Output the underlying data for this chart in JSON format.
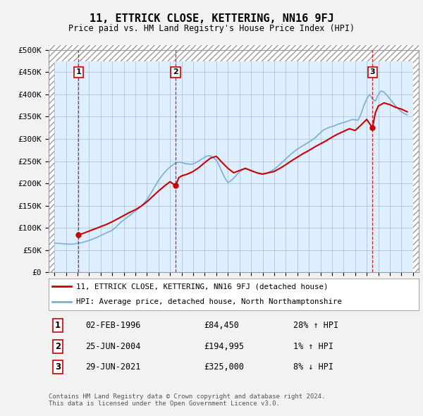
{
  "title": "11, ETTRICK CLOSE, KETTERING, NN16 9FJ",
  "subtitle": "Price paid vs. HM Land Registry's House Price Index (HPI)",
  "ylim": [
    0,
    500000
  ],
  "xlim_start": 1993.5,
  "xlim_end": 2025.5,
  "yticks": [
    0,
    50000,
    100000,
    150000,
    200000,
    250000,
    300000,
    350000,
    400000,
    450000,
    500000
  ],
  "ytick_labels": [
    "£0",
    "£50K",
    "£100K",
    "£150K",
    "£200K",
    "£250K",
    "£300K",
    "£350K",
    "£400K",
    "£450K",
    "£500K"
  ],
  "red_line_color": "#cc0000",
  "blue_line_color": "#7aafd4",
  "background_color": "#ddeeff",
  "grid_color": "#aabbcc",
  "sale_points": [
    {
      "year": 1996.08,
      "price": 84450,
      "label": "1"
    },
    {
      "year": 2004.48,
      "price": 194995,
      "label": "2"
    },
    {
      "year": 2021.49,
      "price": 325000,
      "label": "3"
    }
  ],
  "sale_table": [
    {
      "num": "1",
      "date": "02-FEB-1996",
      "price": "£84,450",
      "hpi": "28% ↑ HPI"
    },
    {
      "num": "2",
      "date": "25-JUN-2004",
      "price": "£194,995",
      "hpi": "1% ↑ HPI"
    },
    {
      "num": "3",
      "date": "29-JUN-2021",
      "price": "£325,000",
      "hpi": "8% ↓ HPI"
    }
  ],
  "legend_entries": [
    "11, ETTRICK CLOSE, KETTERING, NN16 9FJ (detached house)",
    "HPI: Average price, detached house, North Northamptonshire"
  ],
  "footer": "Contains HM Land Registry data © Crown copyright and database right 2024.\nThis data is licensed under the Open Government Licence v3.0.",
  "hpi_data_years": [
    1994.0,
    1994.25,
    1994.5,
    1994.75,
    1995.0,
    1995.25,
    1995.5,
    1995.75,
    1996.0,
    1996.25,
    1996.5,
    1996.75,
    1997.0,
    1997.25,
    1997.5,
    1997.75,
    1998.0,
    1998.25,
    1998.5,
    1998.75,
    1999.0,
    1999.25,
    1999.5,
    1999.75,
    2000.0,
    2000.25,
    2000.5,
    2000.75,
    2001.0,
    2001.25,
    2001.5,
    2001.75,
    2002.0,
    2002.25,
    2002.5,
    2002.75,
    2003.0,
    2003.25,
    2003.5,
    2003.75,
    2004.0,
    2004.25,
    2004.5,
    2004.75,
    2005.0,
    2005.25,
    2005.5,
    2005.75,
    2006.0,
    2006.25,
    2006.5,
    2006.75,
    2007.0,
    2007.25,
    2007.5,
    2007.75,
    2008.0,
    2008.25,
    2008.5,
    2008.75,
    2009.0,
    2009.25,
    2009.5,
    2009.75,
    2010.0,
    2010.25,
    2010.5,
    2010.75,
    2011.0,
    2011.25,
    2011.5,
    2011.75,
    2012.0,
    2012.25,
    2012.5,
    2012.75,
    2013.0,
    2013.25,
    2013.5,
    2013.75,
    2014.0,
    2014.25,
    2014.5,
    2014.75,
    2015.0,
    2015.25,
    2015.5,
    2015.75,
    2016.0,
    2016.25,
    2016.5,
    2016.75,
    2017.0,
    2017.25,
    2017.5,
    2017.75,
    2018.0,
    2018.25,
    2018.5,
    2018.75,
    2019.0,
    2019.25,
    2019.5,
    2019.75,
    2020.0,
    2020.25,
    2020.5,
    2020.75,
    2021.0,
    2021.25,
    2021.5,
    2021.75,
    2022.0,
    2022.25,
    2022.5,
    2022.75,
    2023.0,
    2023.25,
    2023.5,
    2023.75,
    2024.0,
    2024.25,
    2024.5
  ],
  "hpi_data_values": [
    66000,
    65500,
    65000,
    64500,
    64000,
    63500,
    63500,
    64500,
    65500,
    66500,
    68000,
    70000,
    72000,
    74500,
    77000,
    80000,
    83000,
    86000,
    89000,
    92000,
    95000,
    100000,
    107000,
    113000,
    118000,
    123000,
    128000,
    133000,
    138000,
    143000,
    149000,
    156000,
    164000,
    174000,
    185000,
    196000,
    207000,
    216000,
    224000,
    231000,
    237000,
    242000,
    246000,
    248000,
    247000,
    245000,
    244000,
    243000,
    244000,
    247000,
    251000,
    255000,
    259000,
    262000,
    262000,
    258000,
    252000,
    240000,
    225000,
    212000,
    202000,
    206000,
    212000,
    219000,
    226000,
    231000,
    233000,
    231000,
    228000,
    226000,
    224000,
    222000,
    221000,
    222000,
    225000,
    228000,
    232000,
    237000,
    243000,
    249000,
    255000,
    261000,
    267000,
    272000,
    277000,
    281000,
    285000,
    289000,
    293000,
    297000,
    302000,
    308000,
    314000,
    320000,
    323000,
    326000,
    328000,
    330000,
    333000,
    335000,
    337000,
    339000,
    341000,
    344000,
    343000,
    342000,
    356000,
    375000,
    390000,
    400000,
    390000,
    385000,
    400000,
    408000,
    405000,
    398000,
    390000,
    382000,
    374000,
    367000,
    361000,
    357000,
    354000
  ],
  "price_data_years": [
    1996.08,
    1996.5,
    1997.0,
    1997.5,
    1998.0,
    1998.5,
    1999.0,
    1999.5,
    2000.0,
    2000.5,
    2001.0,
    2001.5,
    2002.0,
    2002.5,
    2003.0,
    2003.5,
    2004.0,
    2004.48,
    2004.75,
    2005.0,
    2005.5,
    2006.0,
    2006.5,
    2007.0,
    2007.5,
    2008.0,
    2008.5,
    2009.0,
    2009.5,
    2010.0,
    2010.5,
    2011.0,
    2011.5,
    2012.0,
    2012.5,
    2013.0,
    2013.5,
    2014.0,
    2014.5,
    2015.0,
    2015.5,
    2016.0,
    2016.5,
    2017.0,
    2017.5,
    2018.0,
    2018.5,
    2019.0,
    2019.5,
    2020.0,
    2020.5,
    2021.0,
    2021.49,
    2021.75,
    2022.0,
    2022.5,
    2023.0,
    2023.5,
    2024.0,
    2024.5
  ],
  "price_data_values": [
    84450,
    88000,
    93000,
    98000,
    103000,
    108000,
    114000,
    121000,
    128000,
    135000,
    141000,
    149000,
    159000,
    171000,
    183000,
    194000,
    204000,
    194995,
    213000,
    217000,
    221000,
    227000,
    236000,
    247000,
    257000,
    261000,
    247000,
    234000,
    224000,
    229000,
    234000,
    229000,
    224000,
    221000,
    224000,
    227000,
    234000,
    242000,
    251000,
    259000,
    267000,
    274000,
    282000,
    289000,
    296000,
    304000,
    311000,
    317000,
    323000,
    319000,
    331000,
    344000,
    325000,
    359000,
    374000,
    381000,
    377000,
    371000,
    367000,
    361000
  ]
}
